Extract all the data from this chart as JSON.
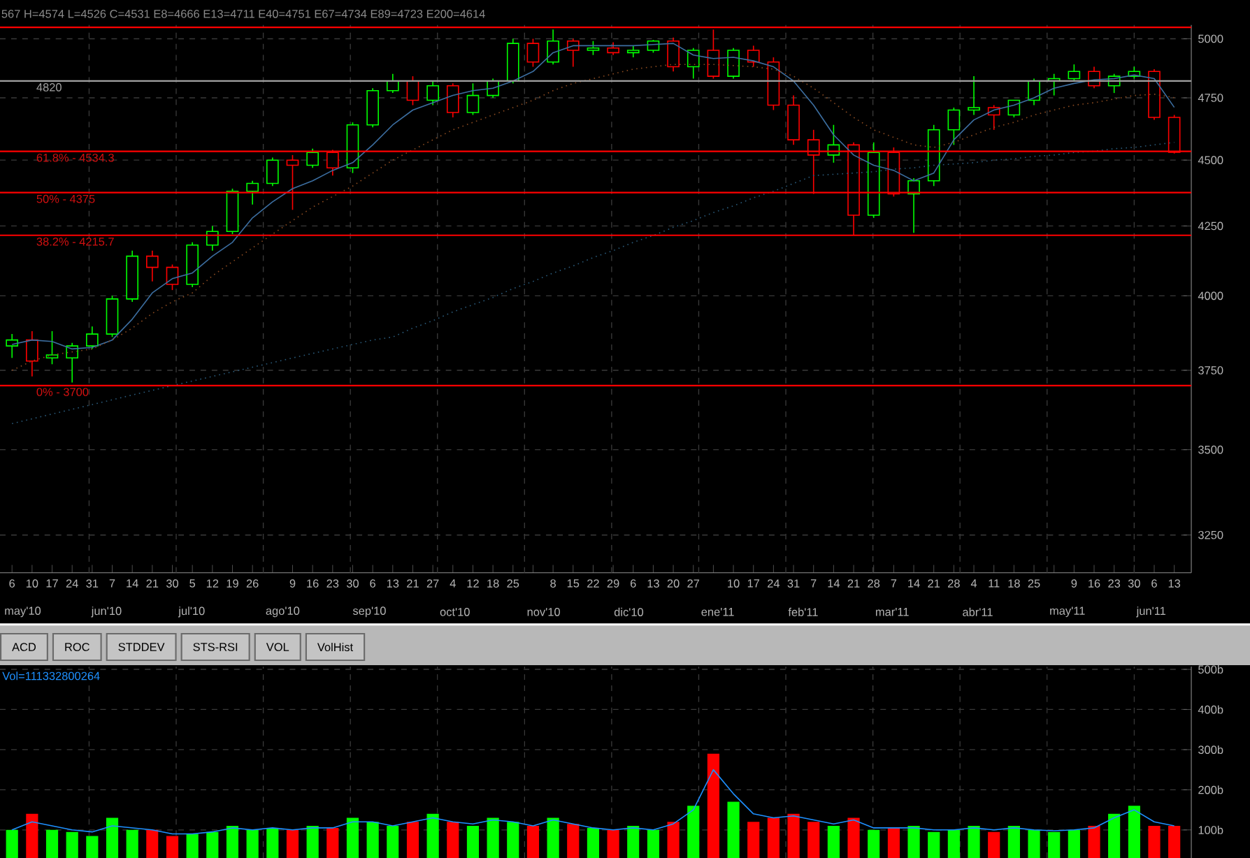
{
  "chart_data": [
    {
      "type": "candlestick",
      "categories": [
        "6",
        "10",
        "17",
        "24",
        "31",
        "7",
        "14",
        "21",
        "30",
        "5",
        "12",
        "19",
        "26",
        null,
        "9",
        "16",
        "23",
        "30",
        "6",
        "13",
        "21",
        "27",
        "4",
        "12",
        "18",
        "25",
        null,
        "8",
        "15",
        "22",
        "29",
        "6",
        "13",
        "20",
        "27",
        null,
        "10",
        "17",
        "24",
        "31",
        "7",
        "14",
        "21",
        "28",
        "7",
        "14",
        "21",
        "28",
        "4",
        "11",
        "18",
        "25",
        null,
        "9",
        "16",
        "23",
        "30",
        "6",
        "13"
      ],
      "ohlc": [
        [
          3830,
          3870,
          3790,
          3850
        ],
        [
          3850,
          3880,
          3730,
          3780
        ],
        [
          3790,
          3880,
          3770,
          3800
        ],
        [
          3790,
          3840,
          3710,
          3830
        ],
        [
          3830,
          3895,
          3820,
          3870
        ],
        [
          3870,
          4000,
          3860,
          3990
        ],
        [
          3990,
          4160,
          3980,
          4140
        ],
        [
          4140,
          4160,
          4050,
          4100
        ],
        [
          4100,
          4110,
          4020,
          4040
        ],
        [
          4040,
          4190,
          4030,
          4180
        ],
        [
          4180,
          4250,
          4160,
          4230
        ],
        [
          4230,
          4390,
          4220,
          4380
        ],
        [
          4380,
          4420,
          4330,
          4410
        ],
        [
          4410,
          4510,
          4400,
          4500
        ],
        [
          4500,
          4520,
          4310,
          4480
        ],
        [
          4480,
          4545,
          4470,
          4530
        ],
        [
          4530,
          4540,
          4440,
          4470
        ],
        [
          4470,
          4650,
          4450,
          4640
        ],
        [
          4640,
          4790,
          4630,
          4780
        ],
        [
          4780,
          4850,
          4770,
          4820
        ],
        [
          4820,
          4840,
          4720,
          4740
        ],
        [
          4740,
          4820,
          4720,
          4800
        ],
        [
          4800,
          4810,
          4670,
          4690
        ],
        [
          4690,
          4810,
          4680,
          4760
        ],
        [
          4760,
          4830,
          4750,
          4820
        ],
        [
          4820,
          5000,
          4810,
          4980
        ],
        [
          4980,
          5000,
          4880,
          4900
        ],
        [
          4900,
          5040,
          4890,
          4990
        ],
        [
          4990,
          5000,
          4880,
          4950
        ],
        [
          4950,
          4990,
          4930,
          4960
        ],
        [
          4960,
          4985,
          4930,
          4940
        ],
        [
          4940,
          4970,
          4920,
          4950
        ],
        [
          4950,
          4995,
          4940,
          4990
        ],
        [
          4990,
          5005,
          4860,
          4880
        ],
        [
          4880,
          4960,
          4830,
          4950
        ],
        [
          4950,
          5040,
          4830,
          4840
        ],
        [
          4840,
          4960,
          4830,
          4950
        ],
        [
          4950,
          4970,
          4880,
          4900
        ],
        [
          4900,
          4920,
          4700,
          4720
        ],
        [
          4720,
          4760,
          4560,
          4580
        ],
        [
          4580,
          4620,
          4370,
          4520
        ],
        [
          4520,
          4640,
          4490,
          4560
        ],
        [
          4560,
          4570,
          4215,
          4290
        ],
        [
          4290,
          4570,
          4280,
          4530
        ],
        [
          4530,
          4550,
          4360,
          4370
        ],
        [
          4370,
          4430,
          4225,
          4420
        ],
        [
          4420,
          4640,
          4400,
          4620
        ],
        [
          4620,
          4710,
          4560,
          4700
        ],
        [
          4700,
          4840,
          4680,
          4710
        ],
        [
          4710,
          4720,
          4620,
          4680
        ],
        [
          4680,
          4740,
          4670,
          4740
        ],
        [
          4740,
          4830,
          4720,
          4820
        ],
        [
          4820,
          4850,
          4760,
          4830
        ],
        [
          4830,
          4890,
          4820,
          4860
        ],
        [
          4860,
          4880,
          4790,
          4800
        ],
        [
          4800,
          4850,
          4770,
          4840
        ],
        [
          4840,
          4880,
          4830,
          4860
        ],
        [
          4860,
          4870,
          4660,
          4670
        ],
        [
          4670,
          4680,
          4526,
          4531
        ]
      ],
      "colors": [
        "#00ff00",
        "#ff0000",
        "#00ff00",
        "#00ff00",
        "#00ff00",
        "#00ff00",
        "#00ff00",
        "#ff0000",
        "#ff0000",
        "#00ff00",
        "#00ff00",
        "#00ff00",
        "#00ff00",
        "#00ff00",
        "#ff0000",
        "#00ff00",
        "#ff0000",
        "#00ff00",
        "#00ff00",
        "#00ff00",
        "#ff0000",
        "#00ff00",
        "#ff0000",
        "#00ff00",
        "#00ff00",
        "#00ff00",
        "#ff0000",
        "#00ff00",
        "#ff0000",
        "#00ff00",
        "#ff0000",
        "#00ff00",
        "#00ff00",
        "#ff0000",
        "#00ff00",
        "#ff0000",
        "#00ff00",
        "#ff0000",
        "#ff0000",
        "#ff0000",
        "#ff0000",
        "#00ff00",
        "#ff0000",
        "#00ff00",
        "#ff0000",
        "#00ff00",
        "#00ff00",
        "#00ff00",
        "#00ff00",
        "#ff0000",
        "#00ff00",
        "#00ff00",
        "#00ff00",
        "#00ff00",
        "#ff0000",
        "#00ff00",
        "#00ff00",
        "#ff0000",
        "#ff0000"
      ],
      "series": [
        {
          "type": "line",
          "color": "#3c6ea0",
          "values": [
            3835,
            3850,
            3845,
            3820,
            3825,
            3850,
            3920,
            4010,
            4060,
            4080,
            4140,
            4190,
            4280,
            4340,
            4390,
            4420,
            4460,
            4490,
            4560,
            4640,
            4700,
            4730,
            4760,
            4780,
            4790,
            4820,
            4860,
            4940,
            4970,
            4970,
            4970,
            4970,
            4975,
            4980,
            4930,
            4915,
            4920,
            4905,
            4880,
            4820,
            4720,
            4600,
            4520,
            4480,
            4460,
            4420,
            4450,
            4580,
            4660,
            4700,
            4720,
            4750,
            4790,
            4810,
            4825,
            4830,
            4845,
            4830,
            4711
          ]
        },
        {
          "type": "line",
          "color": "#8a4a20",
          "line_style": "dotted",
          "values": [
            3750,
            3780,
            3800,
            3810,
            3820,
            3850,
            3890,
            3940,
            3980,
            4010,
            4070,
            4120,
            4170,
            4220,
            4270,
            4320,
            4360,
            4400,
            4450,
            4500,
            4540,
            4580,
            4620,
            4650,
            4680,
            4710,
            4740,
            4780,
            4810,
            4830,
            4850,
            4870,
            4880,
            4890,
            4890,
            4890,
            4885,
            4880,
            4870,
            4840,
            4790,
            4730,
            4670,
            4620,
            4590,
            4560,
            4550,
            4570,
            4600,
            4630,
            4650,
            4680,
            4700,
            4720,
            4730,
            4745,
            4760,
            4765,
            4751
          ]
        },
        {
          "type": "line",
          "color": "#2a5a7a",
          "line_style": "dotted",
          "values": [
            3580,
            3595,
            3610,
            3625,
            3640,
            3655,
            3670,
            3685,
            3700,
            3715,
            3730,
            3745,
            3760,
            3775,
            3790,
            3805,
            3820,
            3835,
            3850,
            3860,
            3890,
            3915,
            3945,
            3970,
            3995,
            4025,
            4050,
            4080,
            4105,
            4135,
            4160,
            4190,
            4215,
            4245,
            4270,
            4300,
            4325,
            4355,
            4380,
            4410,
            4440,
            4445,
            4450,
            4455,
            4465,
            4470,
            4480,
            4485,
            4490,
            4500,
            4505,
            4515,
            4520,
            4530,
            4535,
            4545,
            4550,
            4560,
            4570
          ]
        }
      ],
      "ylim": [
        3145,
        5060
      ],
      "yticks": [
        3250,
        3500,
        3750,
        4000,
        4250,
        4500,
        4750,
        5000
      ],
      "log": true,
      "grid": true,
      "ref_lines": [
        {
          "axis": "y",
          "value": 5050,
          "color": "#ff0000"
        },
        {
          "axis": "y",
          "value": 4820,
          "label": "4820",
          "color": "#a0a0a0"
        },
        {
          "axis": "y",
          "value": 4534.3,
          "color": "#ff0000"
        },
        {
          "axis": "y",
          "value": 4375,
          "color": "#ff0000"
        },
        {
          "axis": "y",
          "value": 4215.7,
          "color": "#ff0000"
        },
        {
          "axis": "y",
          "value": 3700,
          "color": "#ff0000"
        }
      ],
      "title": "567 H=4574 L=4526 C=4531 E8=4666 E13=4711 E40=4751 E67=4734 E89=4723 E200=4614",
      "annotations": [
        {
          "text": "61.8% - 4534.3",
          "y": 4534.3
        },
        {
          "text": "50% - 4375",
          "y": 4375
        },
        {
          "text": "38.2% - 4215.7",
          "y": 4215.7
        },
        {
          "text": "0% - 3700",
          "y": 3700
        },
        "may'10",
        "jun'10",
        "jul'10",
        "ago'10",
        "sep'10",
        "oct'10",
        "nov'10",
        "dic'10",
        "ene'11",
        "feb'11",
        "mar'11",
        "abr'11",
        "may'11",
        "jun'11"
      ]
    },
    {
      "type": "bar",
      "categories": [
        null,
        null,
        null,
        null,
        null,
        null,
        null,
        null,
        null,
        null,
        null,
        null,
        null,
        null,
        null,
        null,
        null,
        null,
        null,
        null,
        null,
        null,
        null,
        null,
        null,
        null,
        null,
        null,
        null,
        null,
        null,
        null,
        null,
        null,
        null,
        null,
        null,
        null,
        null,
        null,
        null,
        null,
        null,
        null,
        null,
        null,
        null,
        null,
        null,
        null,
        null,
        null,
        null,
        null,
        null,
        null,
        null,
        null,
        null
      ],
      "series": [
        {
          "values": [
            100,
            140,
            100,
            95,
            85,
            130,
            100,
            100,
            85,
            90,
            95,
            110,
            100,
            105,
            100,
            110,
            105,
            130,
            120,
            110,
            120,
            140,
            120,
            110,
            130,
            120,
            110,
            130,
            115,
            105,
            100,
            110,
            100,
            120,
            160,
            290,
            170,
            120,
            130,
            140,
            120,
            110,
            130,
            100,
            105,
            110,
            95,
            100,
            110,
            95,
            110,
            100,
            95,
            100,
            110,
            140,
            160,
            110,
            110
          ],
          "colors": [
            "#00ff00",
            "#ff0000",
            "#00ff00",
            "#00ff00",
            "#00ff00",
            "#00ff00",
            "#00ff00",
            "#ff0000",
            "#ff0000",
            "#00ff00",
            "#00ff00",
            "#00ff00",
            "#00ff00",
            "#00ff00",
            "#ff0000",
            "#00ff00",
            "#ff0000",
            "#00ff00",
            "#00ff00",
            "#00ff00",
            "#ff0000",
            "#00ff00",
            "#ff0000",
            "#00ff00",
            "#00ff00",
            "#00ff00",
            "#ff0000",
            "#00ff00",
            "#ff0000",
            "#00ff00",
            "#ff0000",
            "#00ff00",
            "#00ff00",
            "#ff0000",
            "#00ff00",
            "#ff0000",
            "#00ff00",
            "#ff0000",
            "#ff0000",
            "#ff0000",
            "#ff0000",
            "#00ff00",
            "#ff0000",
            "#00ff00",
            "#ff0000",
            "#00ff00",
            "#00ff00",
            "#00ff00",
            "#00ff00",
            "#ff0000",
            "#00ff00",
            "#00ff00",
            "#00ff00",
            "#00ff00",
            "#ff0000",
            "#00ff00",
            "#00ff00",
            "#ff0000",
            "#ff0000"
          ]
        },
        {
          "type": "line",
          "color": "#1e90ff",
          "values": [
            100,
            120,
            110,
            100,
            95,
            110,
            105,
            100,
            90,
            90,
            95,
            105,
            100,
            105,
            100,
            105,
            105,
            120,
            120,
            110,
            120,
            130,
            120,
            115,
            125,
            120,
            110,
            125,
            115,
            105,
            100,
            105,
            100,
            115,
            150,
            250,
            190,
            140,
            130,
            135,
            125,
            115,
            125,
            105,
            105,
            105,
            100,
            100,
            105,
            100,
            105,
            100,
            98,
            100,
            105,
            130,
            150,
            120,
            110
          ]
        }
      ],
      "ylim": [
        30,
        507
      ],
      "yticks": [
        {
          "value": 100,
          "label": "100b"
        },
        {
          "value": 200,
          "label": "200b"
        },
        {
          "value": 300,
          "label": "300b"
        },
        {
          "value": 400,
          "label": "400b"
        },
        {
          "value": 500,
          "label": "500b"
        }
      ],
      "grid": true,
      "tick_labels": "y",
      "annotations": [
        "ACD",
        "ROC",
        "STDDEV",
        "STS-RSI",
        "VOL",
        "VolHist",
        "Vol=111332800264"
      ]
    }
  ]
}
